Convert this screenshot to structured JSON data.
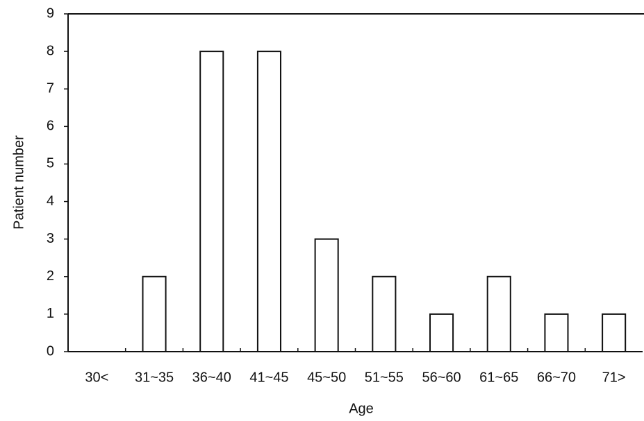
{
  "chart_data": {
    "type": "bar",
    "x_label": "Age",
    "y_label": "Patient number",
    "categories": [
      "30<",
      "31~35",
      "36~40",
      "41~45",
      "45~50",
      "51~55",
      "56~60",
      "61~65",
      "66~70",
      "71>"
    ],
    "values": [
      0,
      2,
      8,
      8,
      3,
      2,
      1,
      2,
      1,
      1
    ],
    "color": "#ffffff",
    "ylim": [
      0,
      9
    ],
    "yticks": [
      0,
      1,
      2,
      3,
      4,
      5,
      6,
      7,
      8,
      9
    ],
    "grid": false
  }
}
